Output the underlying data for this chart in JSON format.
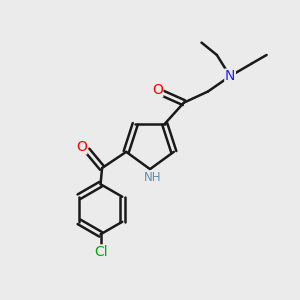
{
  "bg_color": "#ebebeb",
  "bond_color": "#1a1a1a",
  "bond_width": 1.8,
  "atom_colors": {
    "O": "#ff0000",
    "N_pyrrole": "#6090b0",
    "N_amine": "#2020ff",
    "Cl": "#00aa00",
    "C": "#1a1a1a"
  },
  "figsize": [
    3.0,
    3.0
  ],
  "dpi": 100
}
